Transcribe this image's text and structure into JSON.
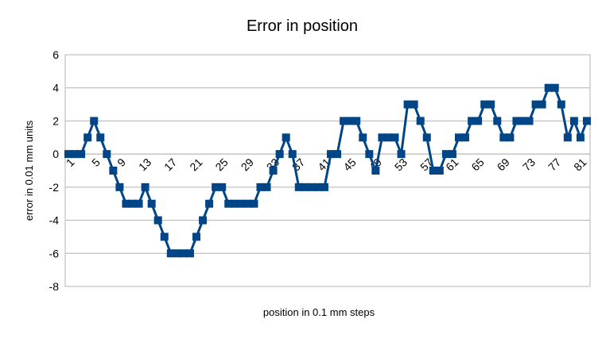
{
  "chart_data": {
    "type": "line",
    "title": "Error in position",
    "x_label": "position in 0.1 mm steps",
    "y_label": "error in 0.01 mm units",
    "categories": [
      "1",
      null,
      null,
      null,
      "5",
      null,
      null,
      null,
      "9",
      null,
      null,
      null,
      "13",
      null,
      null,
      null,
      "17",
      null,
      null,
      null,
      "21",
      null,
      null,
      null,
      "25",
      null,
      null,
      null,
      "29",
      null,
      null,
      null,
      "33",
      null,
      null,
      null,
      "37",
      null,
      null,
      null,
      "41",
      null,
      null,
      null,
      "45",
      null,
      null,
      null,
      "49",
      null,
      null,
      null,
      "53",
      null,
      null,
      null,
      "57",
      null,
      null,
      null,
      "61",
      null,
      null,
      null,
      "65",
      null,
      null,
      null,
      "69",
      null,
      null,
      null,
      "73",
      null,
      null,
      null,
      "77",
      null,
      null,
      null,
      "81",
      null
    ],
    "series": [
      {
        "color": "#004586",
        "values": [
          0,
          0,
          0,
          1,
          2,
          1,
          0,
          -1,
          -2,
          -3,
          -3,
          -3,
          -2,
          -3,
          -4,
          -5,
          -6,
          -6,
          -6,
          -6,
          -5,
          -4,
          -3,
          -2,
          -2,
          -3,
          -3,
          -3,
          -3,
          -3,
          -2,
          -2,
          -1,
          0,
          1,
          0,
          -2,
          -2,
          -2,
          -2,
          -2,
          0,
          0,
          2,
          2,
          2,
          1,
          0,
          -1,
          1,
          1,
          1,
          0,
          3,
          3,
          2,
          1,
          -1,
          -1,
          0,
          0,
          1,
          1,
          2,
          2,
          3,
          3,
          2,
          1,
          1,
          2,
          2,
          2,
          3,
          3,
          4,
          4,
          3,
          1,
          2,
          1,
          2
        ]
      }
    ],
    "ylim": [
      -8,
      6
    ],
    "yticks": [
      -8,
      -6,
      -4,
      -2,
      0,
      2,
      4,
      6
    ],
    "grid": true
  }
}
